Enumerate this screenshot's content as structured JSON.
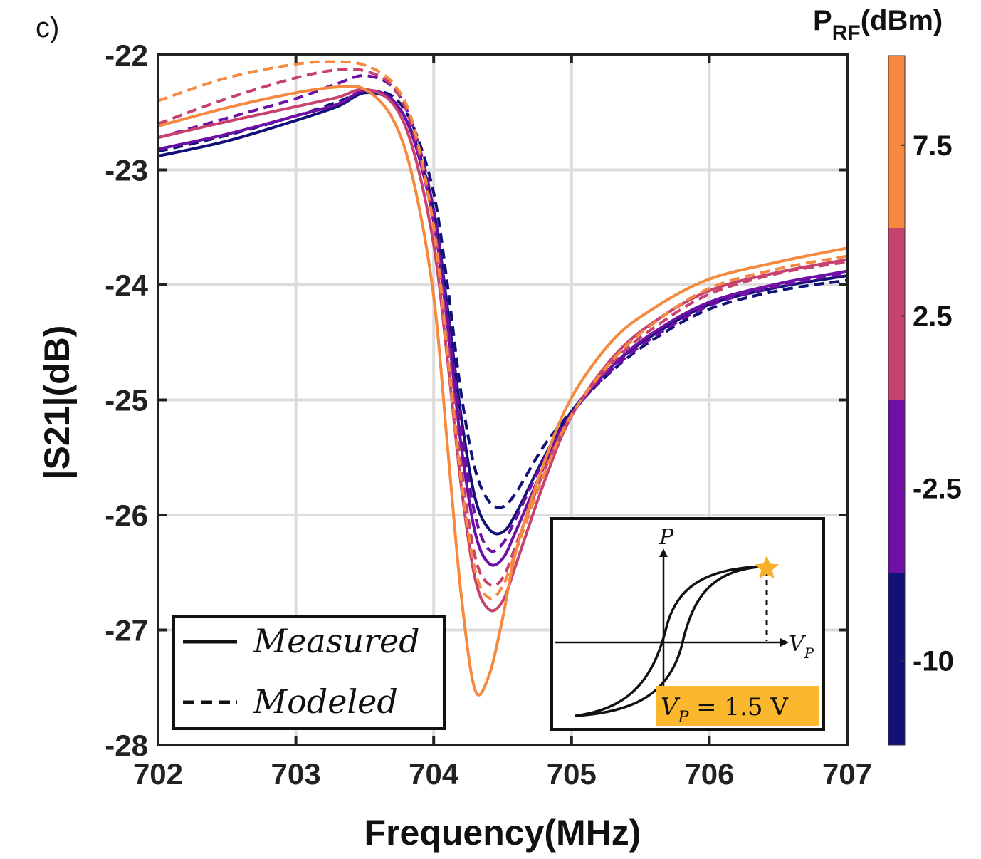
{
  "panel_label": "c)",
  "chart_data": {
    "type": "line",
    "title": "",
    "xlabel": "Frequency(MHz)",
    "ylabel": "|S21|(dB)",
    "xlim": [
      702,
      707
    ],
    "ylim": [
      -28,
      -22
    ],
    "x_ticks": [
      "702",
      "703",
      "704",
      "705",
      "706",
      "707"
    ],
    "y_ticks": [
      "-22",
      "-23",
      "-24",
      "-25",
      "-26",
      "-27",
      "-28"
    ],
    "grid": true,
    "legend": {
      "position": "bottom-left",
      "entries": [
        {
          "label": "Measured",
          "style": "solid"
        },
        {
          "label": "Modeled",
          "style": "dashed"
        }
      ]
    },
    "colorbar": {
      "title_main": "P",
      "title_sub": "RF",
      "title_unit": "(dBm)",
      "labels": [
        "7.5",
        "2.5",
        "-2.5",
        "-10"
      ],
      "colors": [
        "#F4893F",
        "#C7426F",
        "#6E10A5",
        "#111178"
      ]
    },
    "x": [
      702.0,
      702.5,
      703.0,
      703.3,
      703.5,
      703.7,
      703.85,
      704.0,
      704.1,
      704.2,
      704.3,
      704.4,
      704.5,
      704.6,
      704.8,
      705.0,
      705.3,
      705.6,
      706.0,
      706.5,
      707.0
    ],
    "series": [
      {
        "name": "-10 dBm measured",
        "color": "#111178",
        "style": "solid",
        "values": [
          -22.88,
          -22.75,
          -22.57,
          -22.45,
          -22.33,
          -22.4,
          -22.7,
          -23.35,
          -24.2,
          -25.15,
          -25.85,
          -26.12,
          -26.15,
          -25.98,
          -25.5,
          -25.1,
          -24.7,
          -24.43,
          -24.17,
          -24.02,
          -23.92
        ]
      },
      {
        "name": "-10 dBm modeled",
        "color": "#111178",
        "style": "dashed",
        "values": [
          -22.84,
          -22.7,
          -22.53,
          -22.41,
          -22.32,
          -22.36,
          -22.62,
          -23.2,
          -24.0,
          -24.95,
          -25.6,
          -25.88,
          -25.93,
          -25.8,
          -25.4,
          -25.1,
          -24.74,
          -24.47,
          -24.21,
          -24.05,
          -23.96
        ]
      },
      {
        "name": "-2.5 dBm measured",
        "color": "#6E10A5",
        "style": "solid",
        "values": [
          -22.82,
          -22.69,
          -22.53,
          -22.43,
          -22.31,
          -22.39,
          -22.72,
          -23.45,
          -24.35,
          -25.4,
          -26.15,
          -26.42,
          -26.38,
          -26.13,
          -25.58,
          -25.13,
          -24.7,
          -24.41,
          -24.15,
          -23.99,
          -23.88
        ]
      },
      {
        "name": "-2.5 dBm modeled",
        "color": "#6E10A5",
        "style": "dashed",
        "values": [
          -22.72,
          -22.55,
          -22.38,
          -22.25,
          -22.18,
          -22.28,
          -22.62,
          -23.35,
          -24.25,
          -25.25,
          -26.0,
          -26.3,
          -26.25,
          -26.02,
          -25.52,
          -25.12,
          -24.73,
          -24.45,
          -24.18,
          -24.01,
          -23.9
        ]
      },
      {
        "name": "2.5 dBm measured",
        "color": "#C7426F",
        "style": "solid",
        "values": [
          -22.72,
          -22.58,
          -22.45,
          -22.37,
          -22.3,
          -22.42,
          -22.82,
          -23.65,
          -24.65,
          -25.75,
          -26.55,
          -26.82,
          -26.75,
          -26.42,
          -25.72,
          -25.14,
          -24.63,
          -24.32,
          -24.05,
          -23.89,
          -23.78
        ]
      },
      {
        "name": "2.5 dBm modeled",
        "color": "#C7426F",
        "style": "dashed",
        "values": [
          -22.6,
          -22.38,
          -22.2,
          -22.13,
          -22.14,
          -22.27,
          -22.65,
          -23.48,
          -24.5,
          -25.58,
          -26.36,
          -26.6,
          -26.55,
          -26.25,
          -25.62,
          -25.13,
          -24.67,
          -24.37,
          -24.08,
          -23.9,
          -23.8
        ]
      },
      {
        "name": "7.5 dBm measured",
        "color": "#F4893F",
        "style": "solid",
        "values": [
          -22.62,
          -22.46,
          -22.33,
          -22.28,
          -22.3,
          -22.55,
          -23.08,
          -24.1,
          -25.4,
          -26.7,
          -27.52,
          -27.4,
          -26.9,
          -26.3,
          -25.55,
          -24.98,
          -24.48,
          -24.2,
          -23.95,
          -23.8,
          -23.68
        ]
      },
      {
        "name": "7.5 dBm modeled",
        "color": "#F4893F",
        "style": "dashed",
        "values": [
          -22.4,
          -22.2,
          -22.08,
          -22.06,
          -22.09,
          -22.24,
          -22.6,
          -23.5,
          -24.6,
          -25.7,
          -26.48,
          -26.72,
          -26.62,
          -26.3,
          -25.65,
          -25.13,
          -24.65,
          -24.33,
          -24.03,
          -23.86,
          -23.75
        ]
      }
    ]
  },
  "inset": {
    "y_axis_label": "P",
    "x_axis_label": "V",
    "x_axis_sub": "P",
    "note_main": "V",
    "note_sub": "P",
    "note_rest": " = 1.5 V",
    "highlight_color": "#FBB82E",
    "star_color": "#F8B02A"
  }
}
